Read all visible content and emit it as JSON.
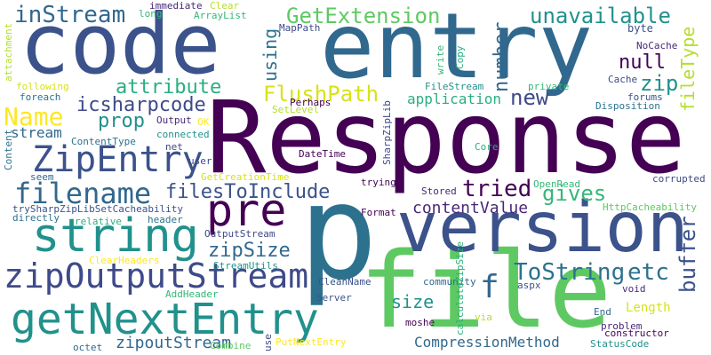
{
  "words": [
    {
      "text": "Response",
      "color": "#440154"
    },
    {
      "text": "entry",
      "color": "#31688e"
    },
    {
      "text": "code",
      "color": "#3b528b"
    },
    {
      "text": "p",
      "color": "#2c728e"
    },
    {
      "text": "file",
      "color": "#5ec962"
    },
    {
      "text": "version",
      "color": "#3b528b"
    },
    {
      "text": "getNextEntry",
      "color": "#21918c"
    },
    {
      "text": "zipOutputStream",
      "color": "#3e4a89"
    },
    {
      "text": "string",
      "color": "#21918c"
    },
    {
      "text": "pre",
      "color": "#440154"
    },
    {
      "text": "ZipEntry",
      "color": "#3b528b"
    },
    {
      "text": "filename",
      "color": "#31688e"
    },
    {
      "text": "Name",
      "color": "#fde725"
    },
    {
      "text": "inStream",
      "color": "#31688e"
    },
    {
      "text": "GetExtension",
      "color": "#5ec962"
    },
    {
      "text": "unavailable",
      "color": "#21918c"
    },
    {
      "text": "FlushPath",
      "color": "#d8e219"
    },
    {
      "text": "attribute",
      "color": "#29af7f"
    },
    {
      "text": "icsharpcode",
      "color": "#3e4a89"
    },
    {
      "text": "prop",
      "color": "#21918c"
    },
    {
      "text": "filesToInclude",
      "color": "#3b528b"
    },
    {
      "text": "tried",
      "color": "#440154"
    },
    {
      "text": "gives",
      "color": "#35b779"
    },
    {
      "text": "contentValue",
      "color": "#482878"
    },
    {
      "text": "ToString",
      "color": "#2c728e"
    },
    {
      "text": "etc",
      "color": "#2c728e"
    },
    {
      "text": "zipSize",
      "color": "#31688e"
    },
    {
      "text": "number",
      "color": "#31688e"
    },
    {
      "text": "using",
      "color": "#2c728e"
    },
    {
      "text": "null",
      "color": "#440154"
    },
    {
      "text": "zip",
      "color": "#21918c"
    },
    {
      "text": "new",
      "color": "#3e4a89"
    },
    {
      "text": "application",
      "color": "#29af7f"
    },
    {
      "text": "fileType",
      "color": "#b5de2b"
    },
    {
      "text": "buffer",
      "color": "#3b528b"
    },
    {
      "text": "f",
      "color": "#31688e"
    },
    {
      "text": "size",
      "color": "#21918c"
    },
    {
      "text": "Length",
      "color": "#d8e219"
    },
    {
      "text": "zipoutStream",
      "color": "#31688e"
    },
    {
      "text": "stream",
      "color": "#31688e"
    },
    {
      "text": "CompressionMethod",
      "color": "#31688e"
    },
    {
      "text": "immediate",
      "color": "#482878"
    },
    {
      "text": "long",
      "color": "#35b779"
    },
    {
      "text": "Clear",
      "color": "#b5de2b"
    },
    {
      "text": "ArrayList",
      "color": "#35b779"
    },
    {
      "text": "write",
      "color": "#35b779"
    },
    {
      "text": "byte",
      "color": "#3b528b"
    },
    {
      "text": "NoCache",
      "color": "#482878"
    },
    {
      "text": "Cache",
      "color": "#3e4a89"
    },
    {
      "text": "forums",
      "color": "#3b528b"
    },
    {
      "text": "Disposition",
      "color": "#2c728e"
    },
    {
      "text": "MapPath",
      "color": "#3e4a89"
    },
    {
      "text": "Copy",
      "color": "#29af7f"
    },
    {
      "text": "attachment",
      "color": "#b5de2b"
    },
    {
      "text": "following",
      "color": "#d8e219"
    },
    {
      "text": "foreach",
      "color": "#2c728e"
    },
    {
      "text": "Perhaps",
      "color": "#440154"
    },
    {
      "text": "SetLevel",
      "color": "#b5de2b"
    },
    {
      "text": "SharpZipLib",
      "color": "#3e4a89"
    },
    {
      "text": "FileStream",
      "color": "#21918c"
    },
    {
      "text": "private",
      "color": "#35b779"
    },
    {
      "text": "Output",
      "color": "#482878"
    },
    {
      "text": "OK",
      "color": "#fde725"
    },
    {
      "text": "connected",
      "color": "#21918c"
    },
    {
      "text": "ContentType",
      "color": "#2c728e"
    },
    {
      "text": "net",
      "color": "#3e4a89"
    },
    {
      "text": "user",
      "color": "#3e4a89"
    },
    {
      "text": "DateTime",
      "color": "#440154"
    },
    {
      "text": "Core",
      "color": "#29af7f"
    },
    {
      "text": "Content",
      "color": "#2c728e"
    },
    {
      "text": "seem",
      "color": "#31688e"
    },
    {
      "text": "GetCreationTime",
      "color": "#d8e219"
    },
    {
      "text": "trying",
      "color": "#440154"
    },
    {
      "text": "OpenRead",
      "color": "#35b779"
    },
    {
      "text": "corrupted",
      "color": "#3e4a89"
    },
    {
      "text": "trySharpZipLibSetCacheability",
      "color": "#3b528b"
    },
    {
      "text": "Stored",
      "color": "#482878"
    },
    {
      "text": "HttpCacheability",
      "color": "#5ec962"
    },
    {
      "text": "directly",
      "color": "#2c728e"
    },
    {
      "text": "relative",
      "color": "#29af7f"
    },
    {
      "text": "header",
      "color": "#2c728e"
    },
    {
      "text": "OutputStream",
      "color": "#3e4a89"
    },
    {
      "text": "Format",
      "color": "#440154"
    },
    {
      "text": "ClearHeaders",
      "color": "#fde725"
    },
    {
      "text": "StreamUtils",
      "color": "#21918c"
    },
    {
      "text": "AddHeader",
      "color": "#35b779"
    },
    {
      "text": "CleanName",
      "color": "#3b528b"
    },
    {
      "text": "community",
      "color": "#31688e"
    },
    {
      "text": "Server",
      "color": "#3b528b"
    },
    {
      "text": "calculateZipSize",
      "color": "#29af7f"
    },
    {
      "text": "aspx",
      "color": "#3b528b"
    },
    {
      "text": "void",
      "color": "#482878"
    },
    {
      "text": "End",
      "color": "#31688e"
    },
    {
      "text": "moshe",
      "color": "#440154"
    },
    {
      "text": "via",
      "color": "#b5de2b"
    },
    {
      "text": "problem",
      "color": "#482878"
    },
    {
      "text": "constructor",
      "color": "#440154"
    },
    {
      "text": "use",
      "color": "#3e4a89"
    },
    {
      "text": "PutNextEntry",
      "color": "#fde725"
    },
    {
      "text": "Combine",
      "color": "#5ec962"
    },
    {
      "text": "octet",
      "color": "#31688e"
    },
    {
      "text": "StatusCode",
      "color": "#21918c"
    }
  ]
}
